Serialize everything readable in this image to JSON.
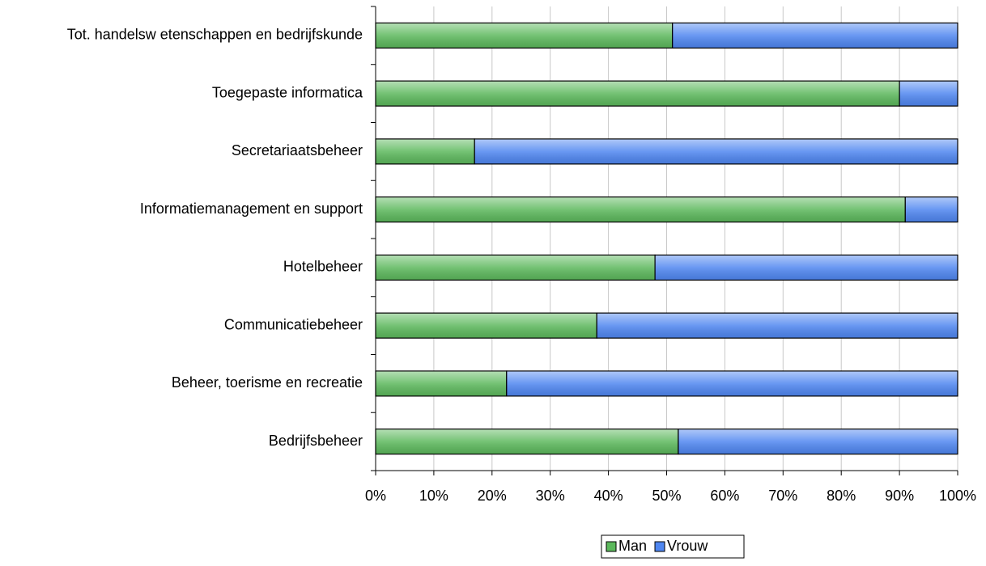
{
  "chart_data": {
    "type": "stacked-barh",
    "categories": [
      "Tot. handelsw etenschappen en bedrijfskunde",
      "Toegepaste informatica",
      "Secretariaatsbeheer",
      "Informatiemanagement en support",
      "Hotelbeheer",
      "Communicatiebeheer",
      "Beheer, toerisme en recreatie",
      "Bedrijfsbeheer"
    ],
    "series": [
      {
        "name": "Man",
        "color": "#5cb85c",
        "values": [
          51,
          90,
          17,
          91,
          48,
          38,
          22.5,
          52
        ]
      },
      {
        "name": "Vrouw",
        "color": "#4f86f0",
        "values": [
          49,
          10,
          83,
          9,
          52,
          62,
          77.5,
          48
        ]
      }
    ],
    "xlim": [
      0,
      100
    ],
    "xticks": [
      {
        "value": 0,
        "label": "0%"
      },
      {
        "value": 10,
        "label": "10%"
      },
      {
        "value": 20,
        "label": "20%"
      },
      {
        "value": 30,
        "label": "30%"
      },
      {
        "value": 40,
        "label": "40%"
      },
      {
        "value": 50,
        "label": "50%"
      },
      {
        "value": 60,
        "label": "60%"
      },
      {
        "value": 70,
        "label": "70%"
      },
      {
        "value": 80,
        "label": "80%"
      },
      {
        "value": 90,
        "label": "90%"
      },
      {
        "value": 100,
        "label": "100%"
      }
    ],
    "grid": true,
    "legend": "bottom"
  }
}
